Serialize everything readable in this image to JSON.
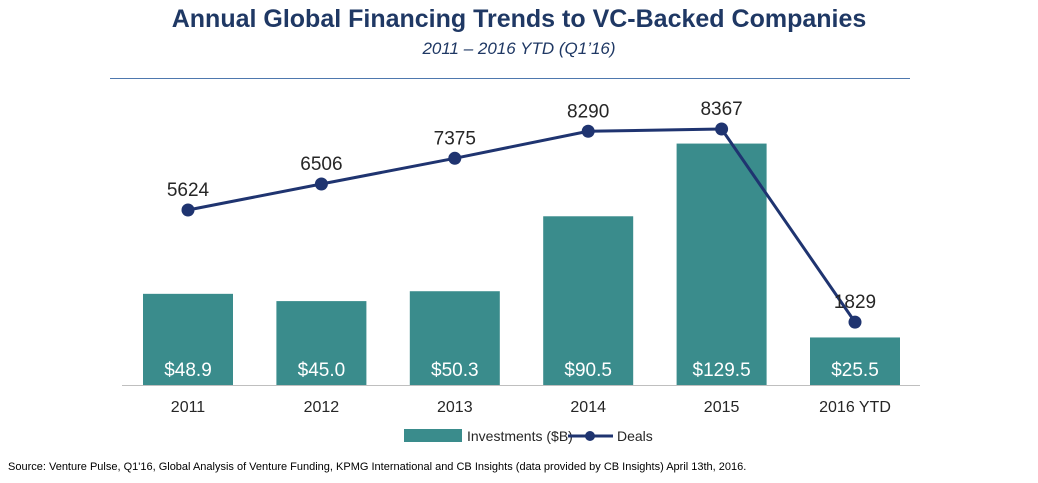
{
  "chart_data": {
    "type": "bar",
    "title": "Annual Global Financing Trends to VC-Backed Companies",
    "subtitle": "2011 – 2016 YTD (Q1’16)",
    "categories": [
      "2011",
      "2012",
      "2013",
      "2014",
      "2015",
      "2016 YTD"
    ],
    "series": [
      {
        "name": "Investments ($B)",
        "type": "bar",
        "values": [
          48.9,
          45.0,
          50.3,
          90.5,
          129.5,
          25.5
        ],
        "labels": [
          "$48.9",
          "$45.0",
          "$50.3",
          "$90.5",
          "$129.5",
          "$25.5"
        ],
        "color": "#3a8c8c"
      },
      {
        "name": "Deals",
        "type": "line",
        "values": [
          5624,
          6506,
          7375,
          8290,
          8367,
          1829
        ],
        "labels": [
          "5624",
          "6506",
          "7375",
          "8290",
          "8367",
          "1829"
        ],
        "color": "#1f3470"
      }
    ],
    "ylim_bars": [
      0,
      140
    ],
    "ylim_line": [
      -300,
      10500
    ],
    "grid": false,
    "legend": "bottom-center"
  },
  "source": "Source: Venture Pulse, Q1'16, Global Analysis of Venture Funding, KPMG International and CB Insights (data provided by CB Insights) April 13th, 2016."
}
